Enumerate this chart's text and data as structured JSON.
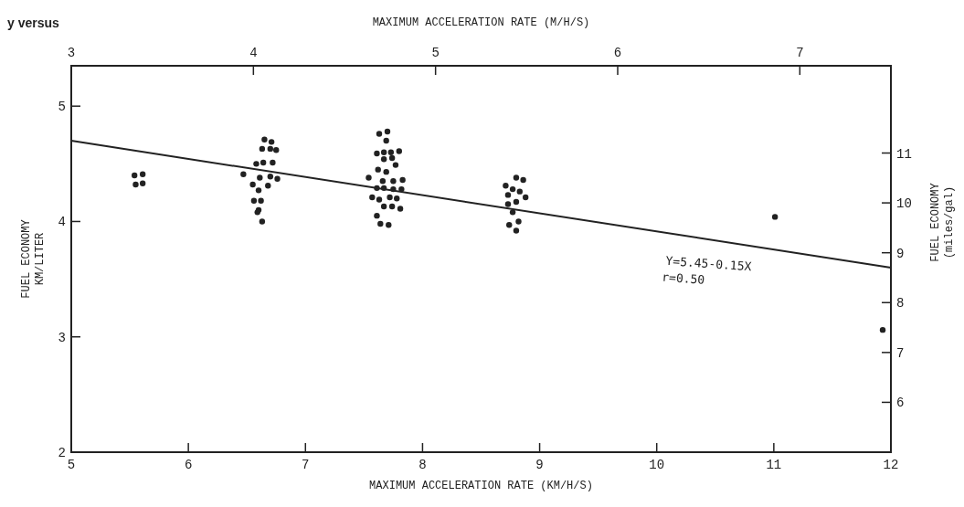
{
  "chart_data": {
    "type": "scatter",
    "title": "y versus",
    "xlabel": "MAXIMUM ACCELERATION RATE (KM/H/S)",
    "x2label": "MAXIMUM ACCELERATION RATE (M/H/S)",
    "ylabel": "FUEL ECONOMY\nKM/LITER",
    "y2label": "FUEL ECONOMY\n(miles/gal)",
    "xlim": [
      5,
      12
    ],
    "xticks": [
      5,
      6,
      7,
      8,
      9,
      10,
      11,
      12
    ],
    "x2lim": [
      3,
      7.5
    ],
    "x2ticks": [
      3,
      4,
      5,
      6,
      7
    ],
    "ylim": [
      2,
      5.35
    ],
    "yticks": [
      2,
      3,
      4,
      5
    ],
    "y2lim": [
      5,
      12.75
    ],
    "y2ticks": [
      6,
      7,
      8,
      9,
      10,
      11
    ],
    "annotations": [
      "Y=5.45-0.15X",
      "r=0.50"
    ],
    "series": [
      {
        "marker": "circle",
        "color": "#222222",
        "x": [
          5.54,
          5.61,
          5.55,
          5.61,
          6.65,
          6.71,
          6.63,
          6.7,
          6.75,
          6.58,
          6.64,
          6.72,
          6.47,
          6.61,
          6.7,
          6.76,
          6.55,
          6.68,
          6.6,
          6.56,
          6.62,
          6.6,
          6.59,
          6.63,
          7.63,
          7.7,
          7.69,
          7.61,
          7.67,
          7.73,
          7.8,
          7.67,
          7.74,
          7.77,
          7.62,
          7.69,
          7.54,
          7.66,
          7.75,
          7.83,
          7.61,
          7.67,
          7.75,
          7.82,
          7.57,
          7.63,
          7.72,
          7.78,
          7.67,
          7.74,
          7.81,
          7.61,
          7.64,
          7.71,
          8.8,
          8.86,
          8.71,
          8.77,
          8.83,
          8.73,
          8.88,
          8.8,
          8.73,
          8.77,
          8.82,
          8.74,
          8.8,
          11.01,
          11.93
        ],
        "values": [
          4.4,
          4.41,
          4.32,
          4.33,
          4.71,
          4.69,
          4.63,
          4.63,
          4.62,
          4.5,
          4.51,
          4.51,
          4.41,
          4.38,
          4.39,
          4.37,
          4.32,
          4.31,
          4.27,
          4.18,
          4.18,
          4.1,
          4.08,
          4.0,
          4.76,
          4.78,
          4.7,
          4.59,
          4.6,
          4.6,
          4.61,
          4.54,
          4.55,
          4.49,
          4.45,
          4.43,
          4.38,
          4.35,
          4.35,
          4.36,
          4.29,
          4.29,
          4.28,
          4.28,
          4.21,
          4.19,
          4.21,
          4.2,
          4.13,
          4.13,
          4.11,
          4.05,
          3.98,
          3.97,
          4.38,
          4.36,
          4.31,
          4.28,
          4.26,
          4.23,
          4.21,
          4.17,
          4.15,
          4.08,
          4.0,
          3.97,
          3.92,
          4.04,
          3.06
        ]
      },
      {
        "type": "line",
        "color": "#222222",
        "x": [
          5,
          12
        ],
        "values": [
          4.7,
          3.6
        ]
      }
    ]
  }
}
